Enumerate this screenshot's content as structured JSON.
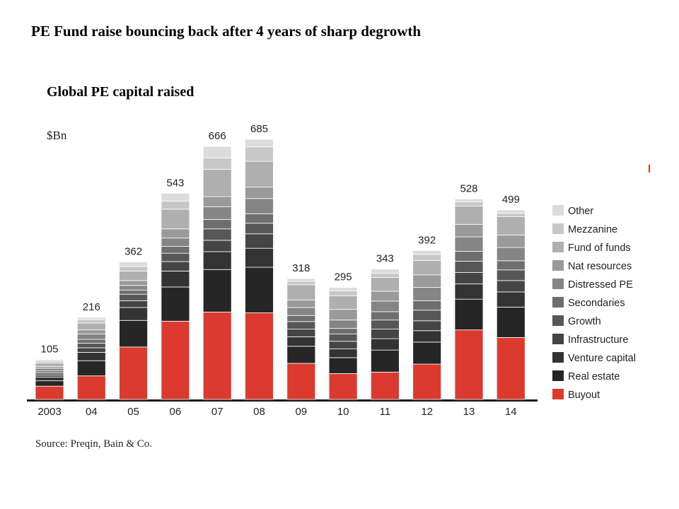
{
  "headline": "PE Fund raise bouncing back after 4 years of sharp degrowth",
  "source": "Source: Preqin, Bain & Co.",
  "chart_data": {
    "type": "bar",
    "stacked": true,
    "title": "Global PE capital raised",
    "ylabel": "$Bn",
    "xlabel": "",
    "grid": false,
    "legend_position": "right",
    "ylim": [
      0,
      700
    ],
    "categories": [
      "2003",
      "04",
      "05",
      "06",
      "07",
      "08",
      "09",
      "10",
      "11",
      "12",
      "13",
      "14"
    ],
    "totals": [
      105,
      216,
      362,
      543,
      666,
      685,
      318,
      295,
      343,
      392,
      528,
      499
    ],
    "series": [
      {
        "name": "Buyout",
        "color": "#dd3a2f",
        "values": [
          35,
          62,
          138,
          206,
          230,
          228,
          95,
          68,
          72,
          93,
          183,
          163
        ]
      },
      {
        "name": "Real estate",
        "color": "#262626",
        "values": [
          14,
          40,
          70,
          90,
          112,
          120,
          45,
          42,
          58,
          58,
          81,
          80
        ]
      },
      {
        "name": "Venture capital",
        "color": "#333333",
        "values": [
          10,
          22,
          34,
          42,
          47,
          50,
          25,
          23,
          30,
          30,
          40,
          40
        ]
      },
      {
        "name": "Infrastructure",
        "color": "#454545",
        "values": [
          5,
          12,
          18,
          25,
          30,
          38,
          20,
          20,
          25,
          26,
          30,
          30
        ]
      },
      {
        "name": "Growth",
        "color": "#575757",
        "values": [
          6,
          12,
          17,
          22,
          30,
          28,
          20,
          19,
          24,
          28,
          30,
          28
        ]
      },
      {
        "name": "Secondaries",
        "color": "#6e6e6e",
        "values": [
          5,
          10,
          11,
          18,
          25,
          25,
          16,
          15,
          22,
          25,
          26,
          24
        ]
      },
      {
        "name": "Distressed PE",
        "color": "#858585",
        "values": [
          7,
          14,
          12,
          22,
          33,
          40,
          21,
          22,
          28,
          35,
          38,
          35
        ]
      },
      {
        "name": "Nat resources",
        "color": "#9a9a9a",
        "values": [
          5,
          11,
          13,
          24,
          27,
          30,
          20,
          28,
          26,
          33,
          33,
          33
        ]
      },
      {
        "name": "Fund of funds",
        "color": "#afafaf",
        "values": [
          9,
          18,
          25,
          52,
          72,
          68,
          40,
          36,
          36,
          38,
          48,
          48
        ]
      },
      {
        "name": "Mezzanine",
        "color": "#c7c7c7",
        "values": [
          5,
          9,
          12,
          21,
          30,
          38,
          9,
          13,
          11,
          16,
          11,
          9
        ]
      },
      {
        "name": "Other",
        "color": "#dcdcdc",
        "values": [
          4,
          6,
          12,
          21,
          30,
          20,
          7,
          9,
          11,
          10,
          8,
          9
        ]
      }
    ]
  }
}
